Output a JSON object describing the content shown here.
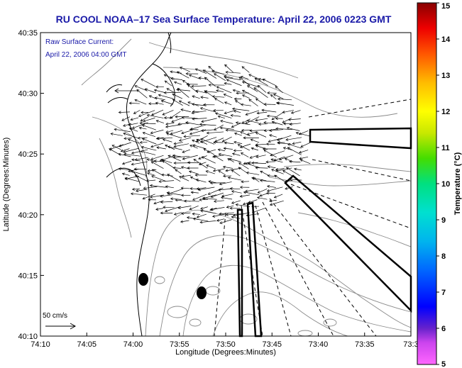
{
  "chart_data": {
    "type": "vector-field-map",
    "title": "RU COOL  NOAA–17  Sea Surface Temperature:  April 22, 2006 0223 GMT",
    "annotation_lines": [
      "Raw Surface Current:",
      "April 22, 2006 04:00 GMT"
    ],
    "xlabel": "Longitude (Degrees:Minutes)",
    "ylabel": "Latitude (Degrees:Minutes)",
    "x_ticks": [
      "74:10",
      "74:05",
      "74:00",
      "73:55",
      "73:50",
      "73:45",
      "73:40",
      "73:35",
      "73:3"
    ],
    "y_ticks": [
      "40:10",
      "40:15",
      "40:20",
      "40:25",
      "40:30",
      "40:35"
    ],
    "xlim_minutes": [
      0,
      40
    ],
    "ylim_minutes": [
      0,
      25
    ],
    "scale_label": "50 cm/s",
    "colorbar": {
      "label": "Temperature (°C)",
      "range": [
        5,
        15
      ],
      "ticks": [
        "5",
        "6",
        "7",
        "8",
        "9",
        "10",
        "11",
        "12",
        "13",
        "14",
        "15"
      ]
    },
    "vector_field": {
      "description": "Surface current arrows, dense region ~40:19-40:31 N, 73:44-74:03 W",
      "flow": "predominantly westward, veering south-westward in south, north-westward in north"
    }
  },
  "colors": {
    "title": "#1a1aa8",
    "arrows": "#000000",
    "contours": "#8a8a8a",
    "coast": "#000000"
  }
}
